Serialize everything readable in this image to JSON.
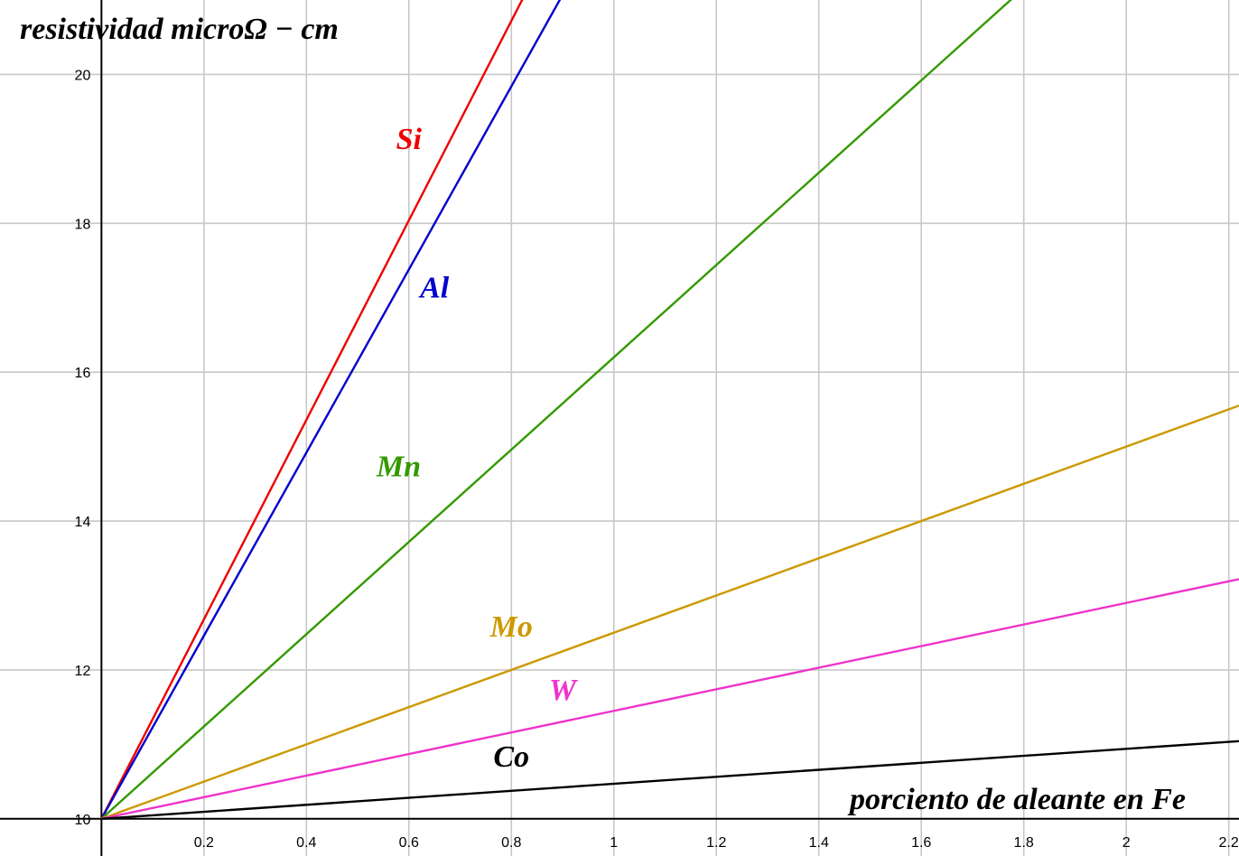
{
  "chart_data": {
    "type": "line",
    "xlabel": "porciento de aleante en Fe",
    "ylabel": "resistividad microΩ − cm",
    "xlim": [
      -0.198,
      2.22
    ],
    "ylim": [
      9.5,
      21
    ],
    "x_ticks": [
      0.2,
      0.4,
      0.6,
      0.8,
      1,
      1.2,
      1.4,
      1.6,
      1.8,
      2,
      2.2
    ],
    "x_tick_labels": [
      "0.2",
      "0.4",
      "0.6",
      "0.8",
      "1",
      "1.2",
      "1.4",
      "1.6",
      "1.8",
      "2",
      "2.2"
    ],
    "y_ticks": [
      10,
      12,
      14,
      16,
      18,
      20
    ],
    "y_tick_labels": [
      "10",
      "12",
      "14",
      "16",
      "18",
      "20"
    ],
    "x_grid": [
      0.2,
      0.4,
      0.6,
      0.8,
      1,
      1.2,
      1.4,
      1.6,
      1.8,
      2,
      2.2
    ],
    "y_grid": [
      10,
      12,
      14,
      16,
      18,
      20
    ],
    "grid": true,
    "series": [
      {
        "name": "Si",
        "color": "#ee0000",
        "x": [
          0,
          1
        ],
        "y": [
          10,
          23.4
        ],
        "label_at": [
          0.6,
          19.0
        ]
      },
      {
        "name": "Al",
        "color": "#0000cc",
        "x": [
          0,
          1
        ],
        "y": [
          10,
          22.3
        ],
        "label_at": [
          0.65,
          17.0
        ]
      },
      {
        "name": "Mn",
        "color": "#339900",
        "x": [
          0,
          1
        ],
        "y": [
          10,
          16.2
        ],
        "label_at": [
          0.58,
          14.6
        ]
      },
      {
        "name": "Mo",
        "color": "#cc9900",
        "x": [
          0,
          1
        ],
        "y": [
          10,
          12.5
        ],
        "label_at": [
          0.8,
          12.45
        ]
      },
      {
        "name": "W",
        "color": "#ee33cc",
        "x": [
          0,
          1
        ],
        "y": [
          10,
          11.45
        ],
        "label_at": [
          0.9,
          11.6
        ]
      },
      {
        "name": "Co",
        "color": "#000000",
        "x": [
          0,
          1
        ],
        "y": [
          10,
          10.47
        ],
        "label_at": [
          0.8,
          10.7
        ]
      }
    ]
  }
}
